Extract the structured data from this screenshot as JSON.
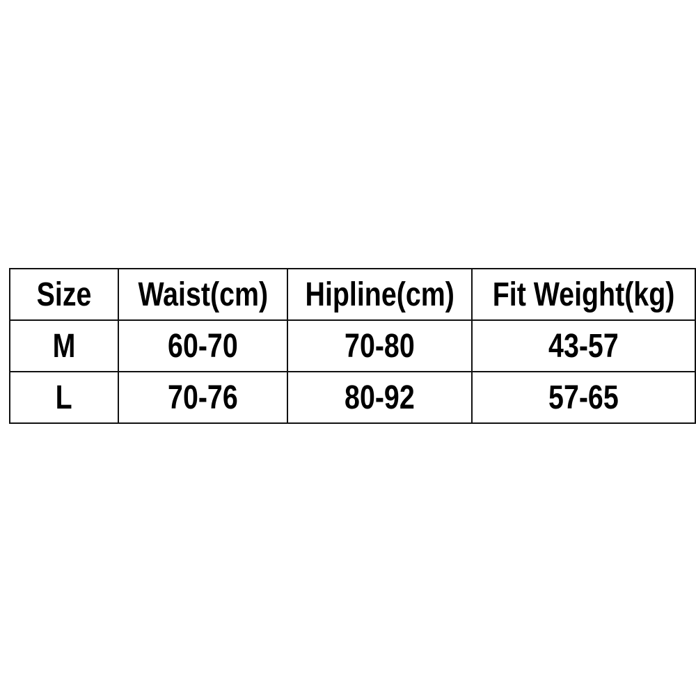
{
  "size_chart": {
    "headers": [
      "Size",
      "Waist(cm)",
      "Hipline(cm)",
      "Fit Weight(kg)"
    ],
    "rows": [
      [
        "M",
        "60-70",
        "70-80",
        "43-57"
      ],
      [
        "L",
        "70-76",
        "80-92",
        "57-65"
      ]
    ]
  }
}
